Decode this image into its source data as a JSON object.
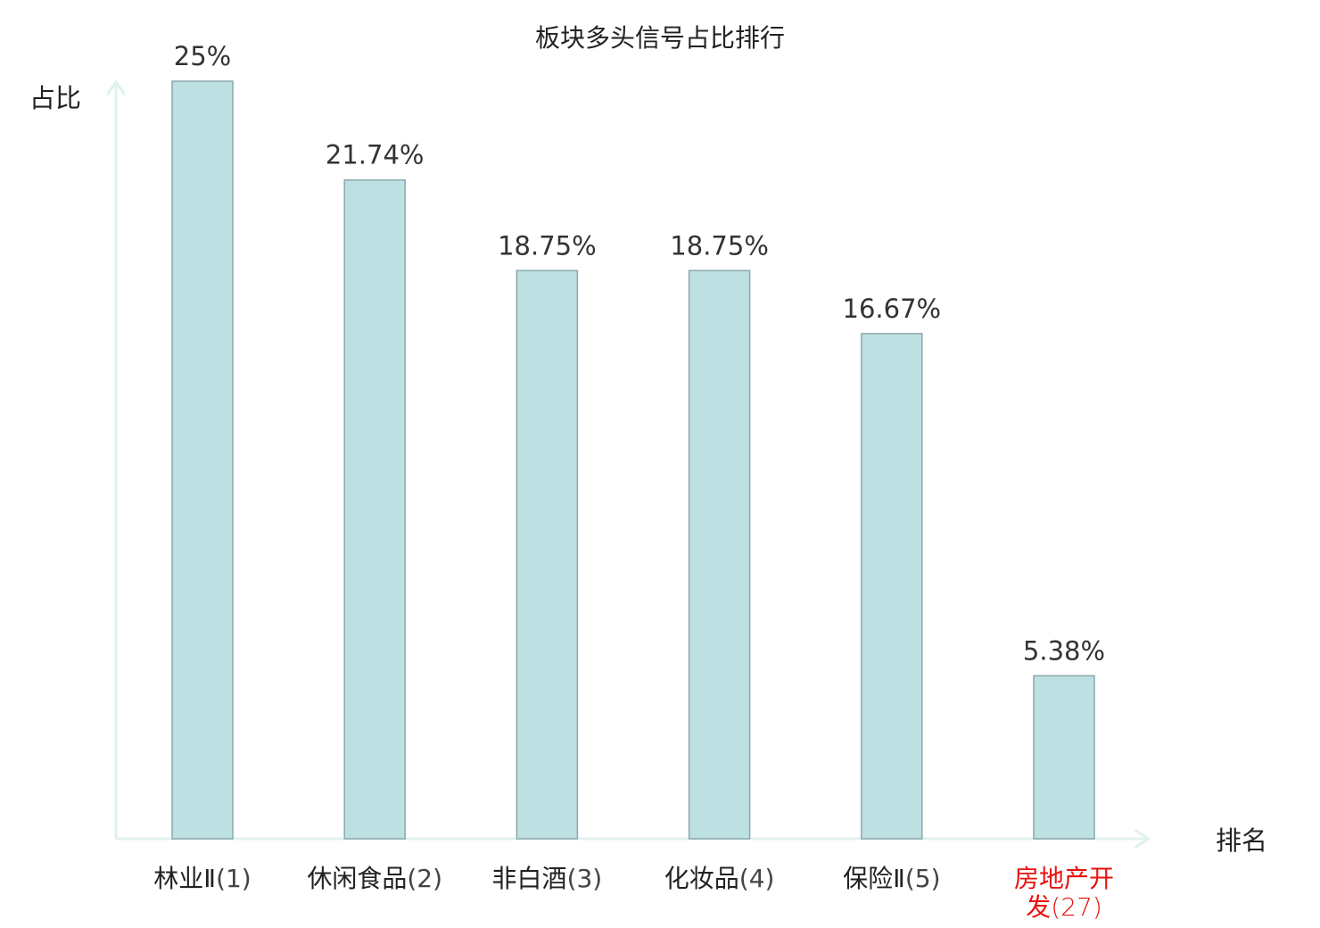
{
  "chart_data": {
    "type": "bar",
    "title": "板块多头信号占比排行",
    "xlabel": "排名",
    "ylabel": "占比",
    "categories": [
      {
        "name": "林业Ⅱ",
        "rank": "(1)",
        "highlight": false
      },
      {
        "name": "休闲食品",
        "rank": "(2)",
        "highlight": false
      },
      {
        "name": "非白酒",
        "rank": "(3)",
        "highlight": false
      },
      {
        "name": "化妆品",
        "rank": "(4)",
        "highlight": false
      },
      {
        "name": "保险Ⅱ",
        "rank": "(5)",
        "highlight": false
      },
      {
        "name": "房地产开发",
        "rank": "(27)",
        "highlight": true
      }
    ],
    "values": [
      25,
      21.74,
      18.75,
      18.75,
      16.67,
      5.38
    ],
    "value_labels": [
      "25%",
      "21.74%",
      "18.75%",
      "18.75%",
      "16.67%",
      "5.38%"
    ],
    "ylim": [
      0,
      25
    ],
    "grid": false,
    "colors": {
      "bar_fill": "#bde0e3",
      "bar_stroke": "#8aa9aa",
      "axis": "#e0f2ee",
      "label": "#222222",
      "value_label": "#333333",
      "rank_text": "#444444",
      "highlight": "#e8120c"
    }
  }
}
